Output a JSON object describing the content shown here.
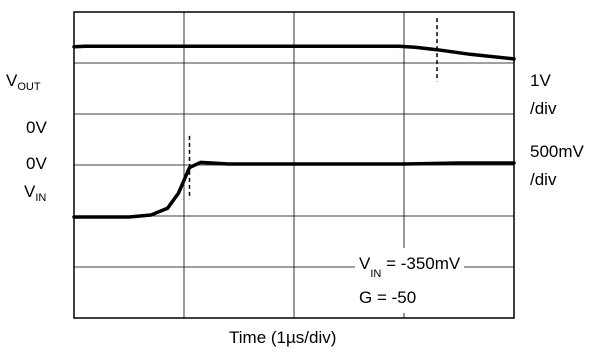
{
  "chart_data": {
    "type": "line",
    "title": "",
    "xlabel": "Time (1µs/div)",
    "grid": true,
    "divisions": {
      "x": 4,
      "y": 6
    },
    "left_labels": {
      "vout_main": "V",
      "vout_sub": "OUT",
      "zero_top": "0V",
      "zero_bottom": "0V",
      "vin_main": "V",
      "vin_sub": "IN"
    },
    "right_labels": {
      "top_scale": "1V",
      "top_unit": "/div",
      "bottom_scale": "500mV",
      "bottom_unit": "/div"
    },
    "annotation": {
      "line1_main": "V",
      "line1_sub": "IN",
      "line1_rest": " = -350mV",
      "line2": "G = -50"
    },
    "series": [
      {
        "trace": "VOUT",
        "unit": "div",
        "x": [
          0,
          0.1,
          0.3,
          0.5,
          1.0,
          2.0,
          2.95,
          3.1,
          3.3,
          3.6,
          4.0
        ],
        "y": [
          1.32,
          1.33,
          1.33,
          1.33,
          1.33,
          1.33,
          1.33,
          1.31,
          1.26,
          1.17,
          1.08
        ]
      },
      {
        "trace": "VIN",
        "unit": "div",
        "x": [
          0,
          0.5,
          0.7,
          0.85,
          0.95,
          1.05,
          1.15,
          1.25,
          1.4,
          2.0,
          3.0,
          3.5,
          4.0
        ],
        "y": [
          -1.02,
          -1.02,
          -0.98,
          -0.85,
          -0.55,
          -0.05,
          0.05,
          0.04,
          0.02,
          0.02,
          0.02,
          0.04,
          0.04
        ]
      }
    ],
    "markers": [
      {
        "trace": "VIN",
        "x": 1.05
      },
      {
        "trace": "VOUT",
        "x": 3.3
      }
    ]
  }
}
